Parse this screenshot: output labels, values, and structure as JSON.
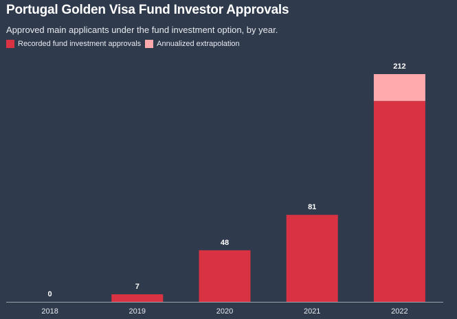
{
  "chart_data": {
    "type": "bar",
    "title": "Portugal Golden Visa Fund Investor Approvals",
    "subtitle": "Approved main applicants under the fund investment option, by year.",
    "categories": [
      "2018",
      "2019",
      "2020",
      "2021",
      "2022"
    ],
    "series": [
      {
        "name": "Recorded fund investment approvals",
        "values": [
          0,
          7,
          48,
          81,
          187
        ],
        "color": "#d93242"
      },
      {
        "name": "Annualized extrapolation",
        "values": [
          0,
          0,
          0,
          0,
          25
        ],
        "color": "#ffaaad"
      }
    ],
    "totals": [
      "0",
      "7",
      "48",
      "81",
      "212"
    ],
    "stacked": true,
    "ylim": [
      0,
      212
    ],
    "grid": false,
    "legend_position": "top-left"
  },
  "colors": {
    "background": "#2f3a4c",
    "axis": "#9aa3ae"
  }
}
